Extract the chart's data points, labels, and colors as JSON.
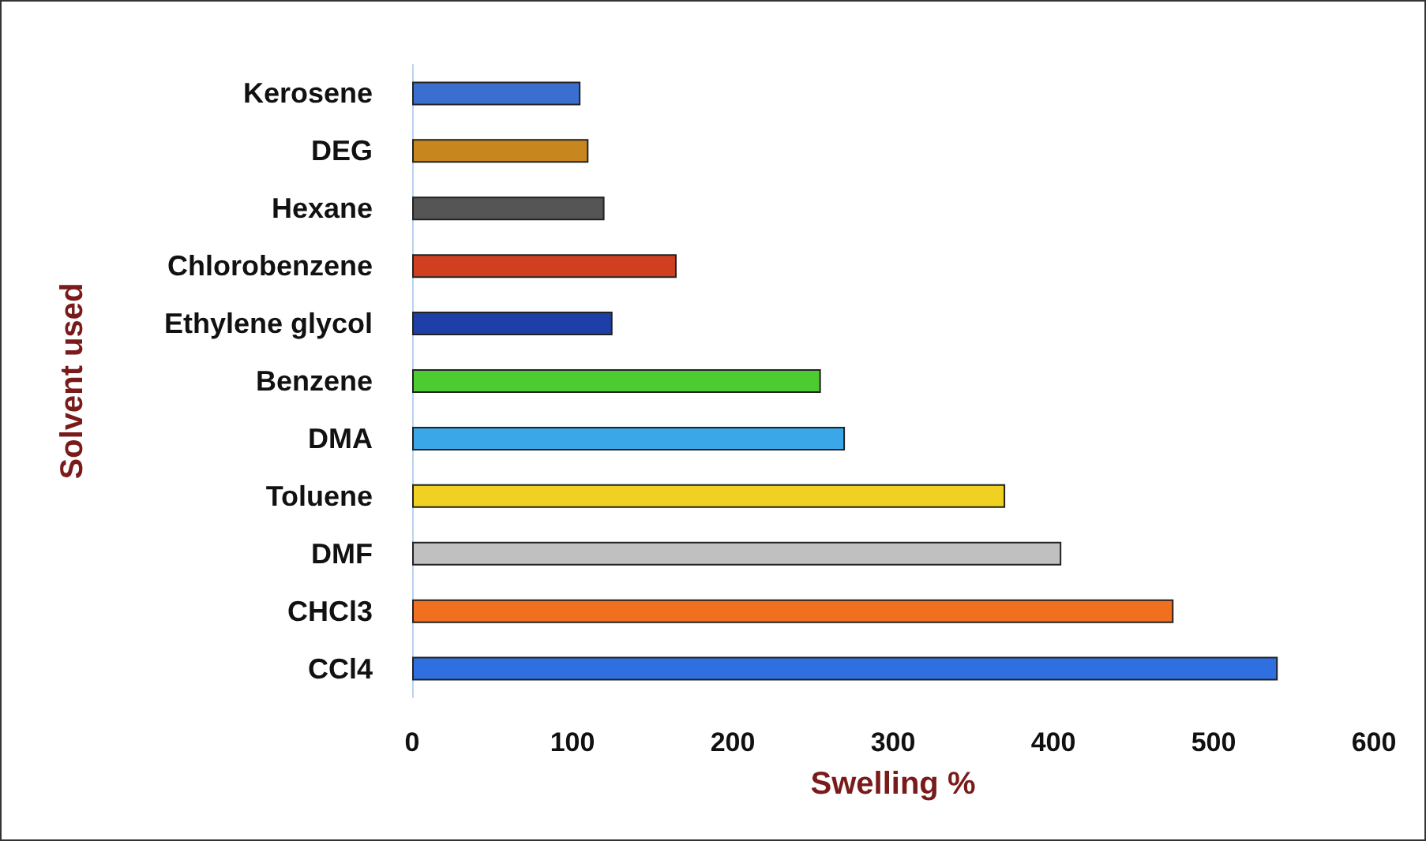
{
  "chart_data": {
    "type": "bar",
    "orientation": "horizontal",
    "xlabel": "Swelling %",
    "ylabel": "Solvent used",
    "categories": [
      "Kerosene",
      "DEG",
      "Hexane",
      "Chlorobenzene",
      "Ethylene glycol",
      "Benzene",
      "DMA",
      "Toluene",
      "DMF",
      "CHCl3",
      "CCl4"
    ],
    "values": [
      105,
      110,
      120,
      165,
      125,
      255,
      270,
      370,
      405,
      475,
      540
    ],
    "colors": [
      "#3a6fd0",
      "#c8861e",
      "#555555",
      "#d04020",
      "#1f3fa8",
      "#4ccc30",
      "#3aa8e8",
      "#f0d020",
      "#c0c0c0",
      "#f07020",
      "#2f6fe0"
    ],
    "xlim": [
      0,
      600
    ],
    "xticks": [
      0,
      100,
      200,
      300,
      400,
      500,
      600
    ],
    "grid": false
  }
}
